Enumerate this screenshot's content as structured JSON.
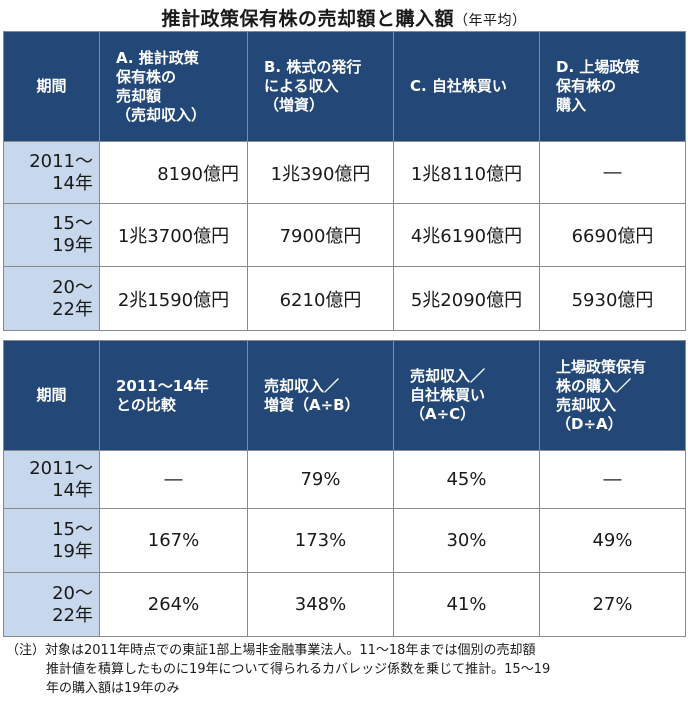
{
  "title": "推計政策保有株の売却額と購入額",
  "subtitle": "（年平均）",
  "table1": {
    "headers": [
      "期間",
      "A. 推計政策\n保有株の\n売却額\n（売却収入）",
      "B. 株式の発行\nによる収入\n（増資）",
      "C. 自社株買い",
      "D. 上場政策\n保有株の\n購入"
    ],
    "rows": [
      {
        "period": "2011～\n14年",
        "a": "8190億円",
        "b": "1兆390億円",
        "c": "1兆8110億円",
        "d": "―"
      },
      {
        "period": "15～\n19年",
        "a": "1兆3700億円",
        "b": "7900億円",
        "c": "4兆6190億円",
        "d": "6690億円"
      },
      {
        "period": "20～\n22年",
        "a": "2兆1590億円",
        "b": "6210億円",
        "c": "5兆2090億円",
        "d": "5930億円"
      }
    ]
  },
  "table2": {
    "headers": [
      "期間",
      "2011～14年\nとの比較",
      "売却収入／\n増資（A÷B）",
      "売却収入／\n自社株買い\n（A÷C）",
      "上場政策保有\n株の購入／\n売却収入\n（D÷A）"
    ],
    "rows": [
      {
        "period": "2011～\n14年",
        "a": "―",
        "b": "79%",
        "c": "45%",
        "d": "―"
      },
      {
        "period": "15～\n19年",
        "a": "167%",
        "b": "173%",
        "c": "30%",
        "d": "49%"
      },
      {
        "period": "20～\n22年",
        "a": "264%",
        "b": "348%",
        "c": "41%",
        "d": "27%"
      }
    ]
  },
  "note": {
    "line1": "（注）対象は2011年時点での東証1部上場非金融事業法人。11～18年までは個別の売却額",
    "line2": "推計値を積算したものに19年について得られるカバレッジ係数を乗じて推計。15～19",
    "line3": "年の購入額は19年のみ"
  },
  "colors": {
    "header_bg": "#234776",
    "period_bg": "#c7d8ec",
    "border": "#8a8a8a"
  }
}
